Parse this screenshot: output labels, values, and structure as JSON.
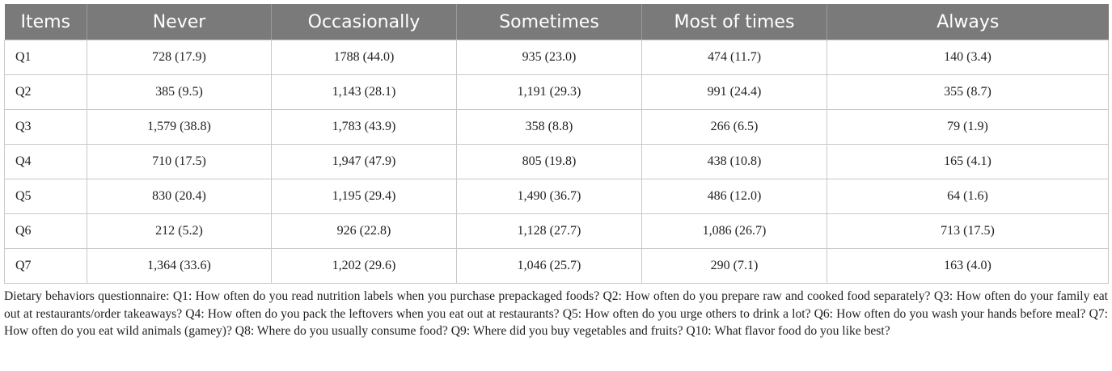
{
  "table": {
    "headers": [
      "Items",
      "Never",
      "Occasionally",
      "Sometimes",
      "Most of times",
      "Always"
    ],
    "rows": [
      [
        "Q1",
        "728 (17.9)",
        "1788 (44.0)",
        "935 (23.0)",
        "474 (11.7)",
        "140 (3.4)"
      ],
      [
        "Q2",
        "385 (9.5)",
        "1,143 (28.1)",
        "1,191 (29.3)",
        "991 (24.4)",
        "355 (8.7)"
      ],
      [
        "Q3",
        "1,579 (38.8)",
        "1,783 (43.9)",
        "358 (8.8)",
        "266 (6.5)",
        "79 (1.9)"
      ],
      [
        "Q4",
        "710 (17.5)",
        "1,947 (47.9)",
        "805 (19.8)",
        "438 (10.8)",
        "165 (4.1)"
      ],
      [
        "Q5",
        "830 (20.4)",
        "1,195 (29.4)",
        "1,490 (36.7)",
        "486 (12.0)",
        "64 (1.6)"
      ],
      [
        "Q6",
        "212 (5.2)",
        "926 (22.8)",
        "1,128 (27.7)",
        "1,086 (26.7)",
        "713 (17.5)"
      ],
      [
        "Q7",
        "1,364 (33.6)",
        "1,202 (29.6)",
        "1,046 (25.7)",
        "290 (7.1)",
        "163 (4.0)"
      ]
    ]
  },
  "footnote": "Dietary behaviors questionnaire: Q1: How often do you read nutrition labels when you purchase prepackaged foods? Q2: How often do you prepare raw and cooked food separately? Q3: How often do your family eat out at restaurants/order takeaways? Q4: How often do you pack the leftovers when you eat out at restaurants? Q5: How often do you urge others to drink a lot? Q6: How often do you wash your hands before meal? Q7: How often do you eat wild animals (gamey)? Q8: Where do you usually consume food? Q9: Where did you buy vegetables and fruits? Q10: What flavor food do you like best?",
  "colors": {
    "header_background": "#7a7a7a",
    "header_text": "#ffffff",
    "grid_line": "#c8c8c8"
  }
}
